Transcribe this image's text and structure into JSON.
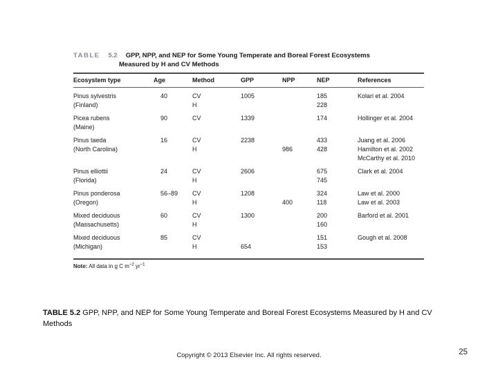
{
  "table": {
    "label": "TABLE",
    "number": "5.2",
    "title_line1": "GPP, NPP, and NEP for Some Young Temperate and Boreal Forest Ecosystems",
    "title_line2": "Measured by H and CV Methods",
    "columns": [
      "Ecosystem type",
      "Age",
      "Method",
      "GPP",
      "NPP",
      "NEP",
      "References"
    ],
    "column_keys": [
      "ecosystem",
      "age",
      "method",
      "gpp",
      "npp",
      "nep",
      "references"
    ],
    "rows": [
      {
        "ecosystem": [
          "Pinus sylvestris",
          "(Finland)"
        ],
        "age": [
          "40"
        ],
        "method": [
          "CV",
          "H"
        ],
        "gpp": [
          "1005"
        ],
        "npp": [],
        "nep": [
          "185",
          "228"
        ],
        "references": [
          "Kolari et al. 2004"
        ]
      },
      {
        "ecosystem": [
          "Picea rubens",
          "(Maine)"
        ],
        "age": [
          "90"
        ],
        "method": [
          "CV"
        ],
        "gpp": [
          "1339"
        ],
        "npp": [],
        "nep": [
          "174"
        ],
        "references": [
          "Hollinger et al. 2004"
        ]
      },
      {
        "ecosystem": [
          "Pinus taeda",
          "(North Carolina)"
        ],
        "age": [
          "16"
        ],
        "method": [
          "CV",
          "H"
        ],
        "gpp": [
          "2238"
        ],
        "npp": [
          "",
          "986"
        ],
        "nep": [
          "433",
          "428"
        ],
        "references": [
          "Juang et al. 2006",
          "Hamilton et al. 2002",
          "McCarthy et al. 2010"
        ]
      },
      {
        "ecosystem": [
          "Pinus elliottii",
          "(Florida)"
        ],
        "age": [
          "24"
        ],
        "method": [
          "CV",
          "H"
        ],
        "gpp": [
          "2606"
        ],
        "npp": [],
        "nep": [
          "675",
          "745"
        ],
        "references": [
          "Clark et al. 2004"
        ]
      },
      {
        "ecosystem": [
          "Pinus ponderosa",
          "(Oregon)"
        ],
        "age": [
          "56–89"
        ],
        "method": [
          "CV",
          "H"
        ],
        "gpp": [
          "1208"
        ],
        "npp": [
          "",
          "400"
        ],
        "nep": [
          "324",
          "118"
        ],
        "references": [
          "Law et al. 2000",
          "Law et al. 2003"
        ]
      },
      {
        "ecosystem": [
          "Mixed deciduous",
          "(Massachusetts)"
        ],
        "age": [
          "60"
        ],
        "method": [
          "CV",
          "H"
        ],
        "gpp": [
          "1300"
        ],
        "npp": [],
        "nep": [
          "200",
          "160"
        ],
        "references": [
          "Barford et al. 2001"
        ]
      },
      {
        "ecosystem": [
          "Mixed deciduous",
          "(Michigan)"
        ],
        "age": [
          "85"
        ],
        "method": [
          "CV",
          "H"
        ],
        "gpp": [
          "",
          "654"
        ],
        "npp": [],
        "nep": [
          "151",
          "153"
        ],
        "references": [
          "Gough et al. 2008"
        ]
      }
    ],
    "note": {
      "label": "Note:",
      "prefix": " All data in g C m",
      "sup1": "−2",
      "mid": " yr",
      "sup2": "−1"
    }
  },
  "slide": {
    "caption_label": "TABLE 5.2",
    "caption_text": " GPP, NPP, and NEP for Some Young Temperate and Boreal Forest Ecosystems Measured by H and CV Methods",
    "copyright": "Copyright © 2013 Elsevier Inc. All rights reserved.",
    "page_number": "25"
  }
}
